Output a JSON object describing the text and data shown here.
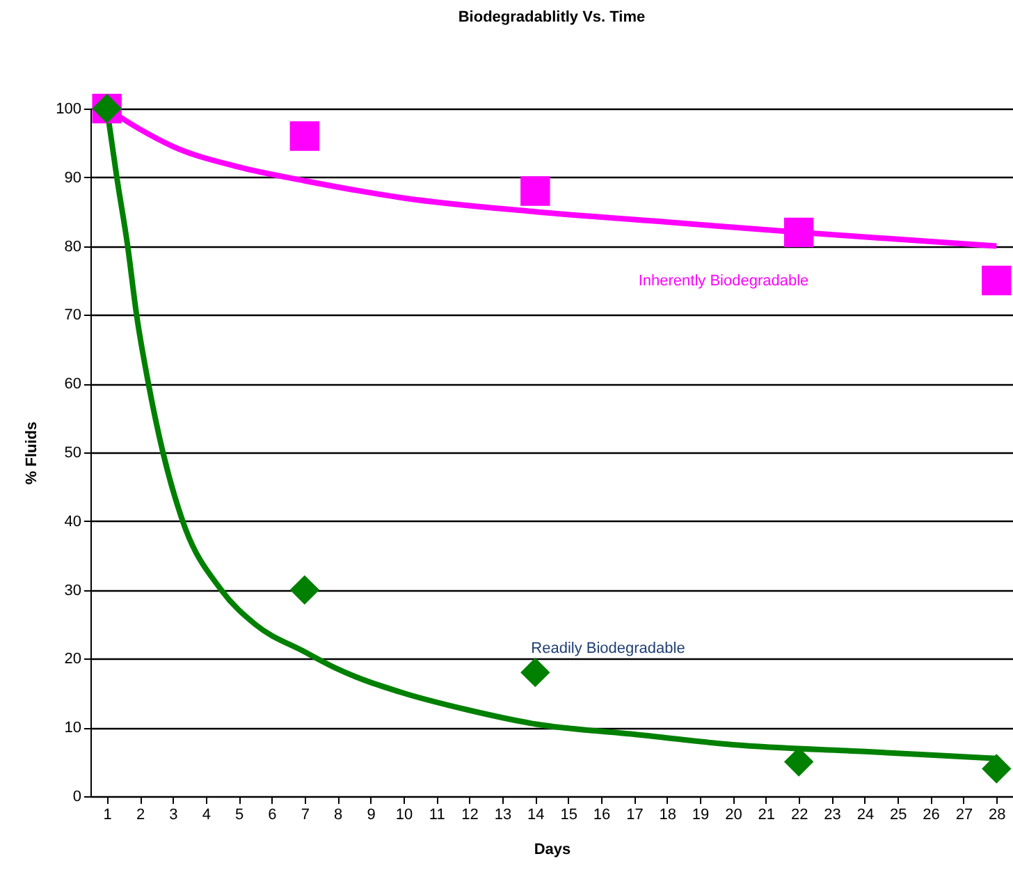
{
  "chart_data": {
    "type": "scatter",
    "title": "Biodegradablitly  Vs. Time",
    "xlabel": "Days",
    "ylabel": "% Fluids",
    "xlim": [
      0.5,
      28.5
    ],
    "xticks": [
      1,
      2,
      3,
      4,
      5,
      6,
      7,
      8,
      9,
      10,
      11,
      12,
      13,
      14,
      15,
      16,
      17,
      18,
      19,
      20,
      21,
      22,
      23,
      24,
      25,
      26,
      27,
      28
    ],
    "ylim": [
      0,
      100
    ],
    "yticks": [
      0,
      10,
      20,
      30,
      40,
      50,
      60,
      70,
      80,
      90,
      100
    ],
    "grid": "y",
    "legend": false,
    "series": [
      {
        "type": "line",
        "marker": "none",
        "color": "#ff00ff",
        "x": [
          1,
          2,
          3,
          5,
          7,
          10,
          14,
          18,
          22,
          28
        ],
        "values": [
          100,
          97,
          94.5,
          91.5,
          89.5,
          87,
          85,
          83.5,
          82,
          80
        ]
      },
      {
        "type": "line",
        "marker": "none",
        "color": "#008000",
        "x": [
          1,
          1.3,
          1.63,
          1.9,
          2.26,
          2.7,
          3.3,
          4.47,
          5.5,
          7,
          8,
          10,
          12,
          14,
          17,
          20,
          24,
          28
        ],
        "values": [
          100,
          90,
          80,
          70,
          60,
          50,
          40,
          30,
          25,
          21,
          18.5,
          15,
          12.5,
          10.5,
          9,
          7.5,
          6.5,
          5.5
        ]
      },
      {
        "marker": "square",
        "color": "#ff00ff",
        "x": [
          1,
          7,
          14,
          22,
          28
        ],
        "values": [
          100,
          96,
          88,
          82,
          75
        ]
      },
      {
        "marker": "diamond",
        "color": "#008000",
        "x": [
          1,
          7,
          14,
          22,
          28
        ],
        "values": [
          100,
          30,
          18,
          5,
          4
        ]
      }
    ],
    "annotations": [
      "Inherently Biodegradable",
      "Readily Biodegradable"
    ]
  }
}
